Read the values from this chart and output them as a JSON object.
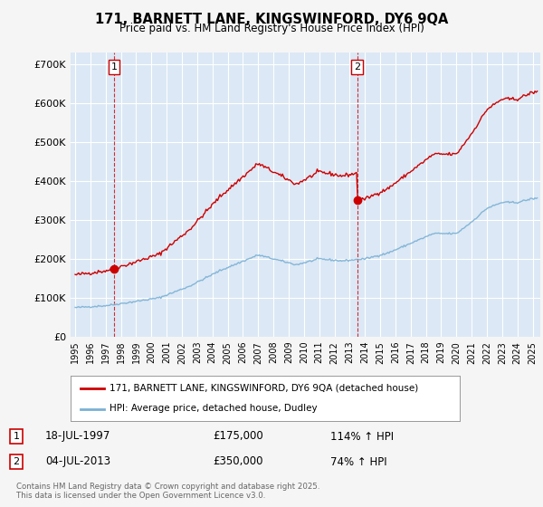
{
  "title": "171, BARNETT LANE, KINGSWINFORD, DY6 9QA",
  "subtitle": "Price paid vs. HM Land Registry's House Price Index (HPI)",
  "ylabel_ticks": [
    "£0",
    "£100K",
    "£200K",
    "£300K",
    "£400K",
    "£500K",
    "£600K",
    "£700K"
  ],
  "ytick_values": [
    0,
    100000,
    200000,
    300000,
    400000,
    500000,
    600000,
    700000
  ],
  "ylim": [
    0,
    730000
  ],
  "xlim_start": 1994.7,
  "xlim_end": 2025.5,
  "sale1_x": 1997.54,
  "sale1_y": 175000,
  "sale1_label": "1",
  "sale2_x": 2013.5,
  "sale2_y": 350000,
  "sale2_label": "2",
  "red_line_color": "#cc0000",
  "blue_line_color": "#7ab0d4",
  "fig_bg_color": "#f5f5f5",
  "plot_bg_color": "#dce8f5",
  "grid_color": "#ffffff",
  "legend_label_red": "171, BARNETT LANE, KINGSWINFORD, DY6 9QA (detached house)",
  "legend_label_blue": "HPI: Average price, detached house, Dudley",
  "annotation1_date": "18-JUL-1997",
  "annotation1_price": "£175,000",
  "annotation1_hpi": "114% ↑ HPI",
  "annotation2_date": "04-JUL-2013",
  "annotation2_price": "£350,000",
  "annotation2_hpi": "74% ↑ HPI",
  "footer": "Contains HM Land Registry data © Crown copyright and database right 2025.\nThis data is licensed under the Open Government Licence v3.0.",
  "xtick_years": [
    1995,
    1996,
    1997,
    1998,
    1999,
    2000,
    2001,
    2002,
    2003,
    2004,
    2005,
    2006,
    2007,
    2008,
    2009,
    2010,
    2011,
    2012,
    2013,
    2014,
    2015,
    2016,
    2017,
    2018,
    2019,
    2020,
    2021,
    2022,
    2023,
    2024,
    2025
  ]
}
